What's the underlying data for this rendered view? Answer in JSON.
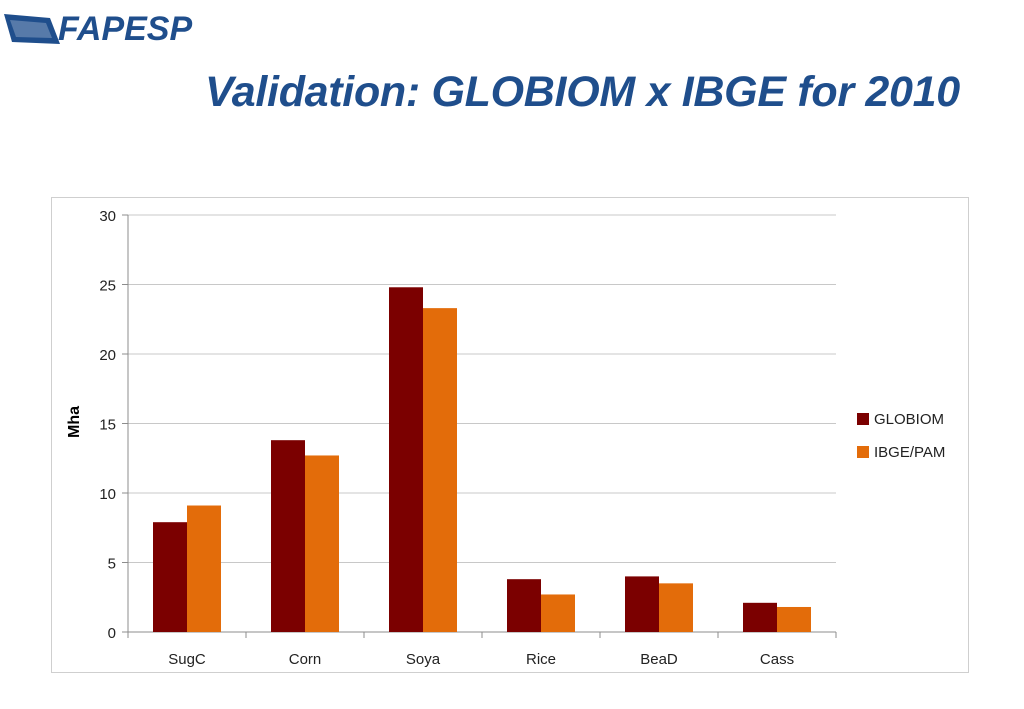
{
  "logo": {
    "text": "FAPESP"
  },
  "slide": {
    "title": "Validation: GLOBIOM x IBGE for 2010"
  },
  "colors": {
    "title": "#1f4e8c",
    "globiom": "#7b0000",
    "ibge": "#e36c0a"
  },
  "chart_data": {
    "type": "bar",
    "title": "",
    "xlabel": "",
    "ylabel": "Mha",
    "ylim": [
      0,
      30
    ],
    "yticks": [
      0,
      5,
      10,
      15,
      20,
      25,
      30
    ],
    "grid": true,
    "legend_position": "right",
    "categories": [
      "SugC",
      "Corn",
      "Soya",
      "Rice",
      "BeaD",
      "Cass"
    ],
    "series": [
      {
        "name": "GLOBIOM",
        "color": "#7b0000",
        "values": [
          7.9,
          13.8,
          24.8,
          3.8,
          4.0,
          2.1
        ]
      },
      {
        "name": "IBGE/PAM",
        "color": "#e36c0a",
        "values": [
          9.1,
          12.7,
          23.3,
          2.7,
          3.5,
          1.8
        ]
      }
    ]
  }
}
